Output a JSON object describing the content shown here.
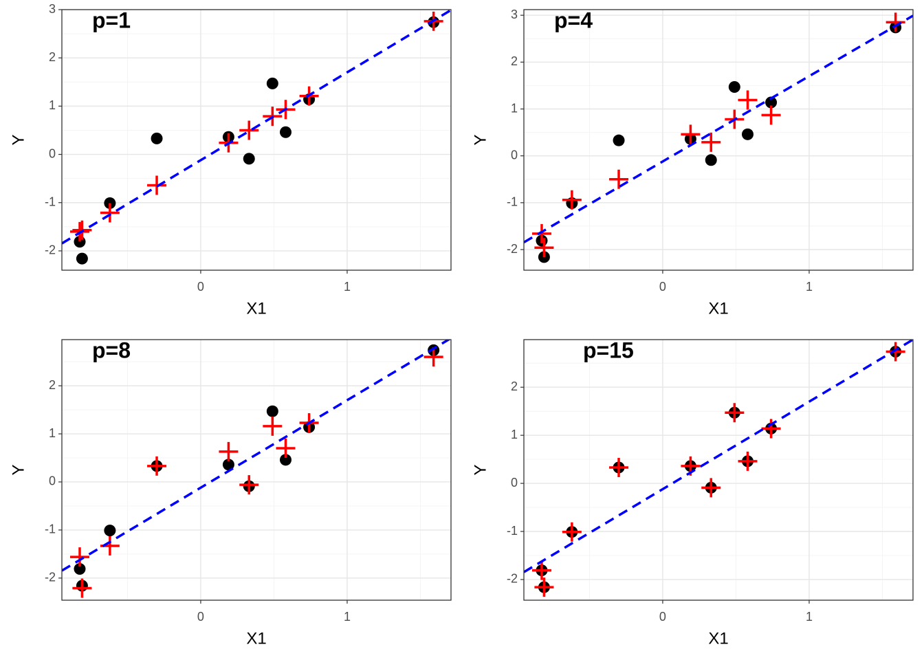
{
  "chart_data": [
    {
      "type": "scatter",
      "annotation": "p=1",
      "x_label": "X1",
      "y_label": "Y",
      "x": [
        -0.826,
        -0.81,
        -0.62,
        -0.3,
        0.19,
        0.33,
        0.49,
        0.58,
        0.74,
        1.59
      ],
      "series": [
        {
          "color": "#000000",
          "marker": "circle",
          "values": [
            -1.81,
            -2.16,
            -1.01,
            0.33,
            0.36,
            -0.09,
            1.47,
            0.46,
            1.14,
            2.74
          ]
        },
        {
          "color": "#ff0000",
          "marker": "plus",
          "values": [
            -1.6,
            -1.57,
            -1.21,
            -0.64,
            0.24,
            0.5,
            0.79,
            0.93,
            1.21,
            2.76
          ]
        }
      ],
      "line": {
        "slope": 1.82,
        "intercept": -0.12,
        "color": "#0000ff"
      },
      "xlim": [
        -0.948,
        1.709
      ],
      "xticks": [
        0,
        1
      ],
      "xminor": [
        -0.5,
        0.5,
        1.5
      ],
      "ylim": [
        -2.4,
        3.0
      ],
      "yticks": [
        -2,
        -1,
        0,
        1,
        2,
        3
      ],
      "yminor": [
        -1.5,
        -0.5,
        0.5,
        1.5,
        2.5
      ],
      "grid": true
    },
    {
      "type": "scatter",
      "annotation": "p=4",
      "x_label": "X1",
      "y_label": "Y",
      "x": [
        -0.826,
        -0.81,
        -0.62,
        -0.3,
        0.19,
        0.33,
        0.49,
        0.58,
        0.74,
        1.59
      ],
      "series": [
        {
          "color": "#000000",
          "marker": "circle",
          "values": [
            -1.81,
            -2.16,
            -1.01,
            0.33,
            0.36,
            -0.09,
            1.47,
            0.46,
            1.14,
            2.74
          ]
        },
        {
          "color": "#ff0000",
          "marker": "plus",
          "values": [
            -1.66,
            -1.96,
            -0.94,
            -0.5,
            0.46,
            0.29,
            0.78,
            1.19,
            0.87,
            2.85
          ]
        }
      ],
      "line": {
        "slope": 1.82,
        "intercept": -0.12,
        "color": "#0000ff"
      },
      "xlim": [
        -0.948,
        1.709
      ],
      "xticks": [
        0,
        1
      ],
      "xminor": [
        -0.5,
        0.5,
        1.5
      ],
      "ylim": [
        -2.44,
        3.12
      ],
      "yticks": [
        -2,
        -1,
        0,
        1,
        2,
        3
      ],
      "yminor": [
        -1.5,
        -0.5,
        0.5,
        1.5,
        2.5
      ],
      "grid": true
    },
    {
      "type": "scatter",
      "annotation": "p=8",
      "x_label": "X1",
      "y_label": "Y",
      "x": [
        -0.826,
        -0.81,
        -0.62,
        -0.3,
        0.19,
        0.33,
        0.49,
        0.58,
        0.74,
        1.59
      ],
      "series": [
        {
          "color": "#000000",
          "marker": "circle",
          "values": [
            -1.81,
            -2.16,
            -1.01,
            0.33,
            0.36,
            -0.09,
            1.47,
            0.46,
            1.14,
            2.74
          ]
        },
        {
          "color": "#ff0000",
          "marker": "plus",
          "values": [
            -1.56,
            -2.21,
            -1.33,
            0.33,
            0.63,
            -0.06,
            1.16,
            0.7,
            1.23,
            2.6
          ]
        }
      ],
      "line": {
        "slope": 1.82,
        "intercept": -0.12,
        "color": "#0000ff"
      },
      "xlim": [
        -0.948,
        1.709
      ],
      "xticks": [
        0,
        1
      ],
      "xminor": [
        -0.5,
        0.5,
        1.5
      ],
      "ylim": [
        -2.46,
        2.96
      ],
      "yticks": [
        -2,
        -1,
        0,
        1,
        2
      ],
      "yminor": [
        -1.5,
        -0.5,
        0.5,
        1.5,
        2.5
      ],
      "grid": true
    },
    {
      "type": "scatter",
      "annotation": "p=15",
      "x_label": "X1",
      "y_label": "Y",
      "x": [
        -0.826,
        -0.81,
        -0.62,
        -0.3,
        0.19,
        0.33,
        0.49,
        0.58,
        0.74,
        1.59
      ],
      "series": [
        {
          "color": "#000000",
          "marker": "circle",
          "values": [
            -1.81,
            -2.16,
            -1.01,
            0.33,
            0.36,
            -0.09,
            1.47,
            0.46,
            1.14,
            2.74
          ]
        },
        {
          "color": "#ff0000",
          "marker": "plus",
          "values": [
            -1.81,
            -2.16,
            -1.01,
            0.33,
            0.36,
            -0.09,
            1.47,
            0.46,
            1.14,
            2.74
          ]
        }
      ],
      "line": {
        "slope": 1.82,
        "intercept": -0.12,
        "color": "#0000ff"
      },
      "xlim": [
        -0.948,
        1.709
      ],
      "xticks": [
        0,
        1
      ],
      "xminor": [
        -0.5,
        0.5,
        1.5
      ],
      "ylim": [
        -2.43,
        2.99
      ],
      "yticks": [
        -2,
        -1,
        0,
        1,
        2
      ],
      "yminor": [
        -1.5,
        -0.5,
        0.5,
        1.5,
        2.5
      ],
      "grid": true
    }
  ]
}
